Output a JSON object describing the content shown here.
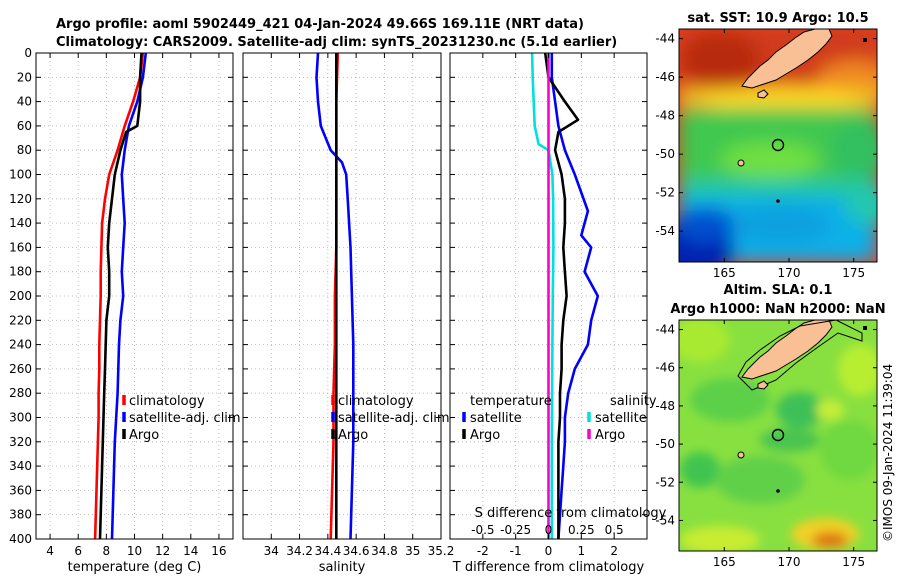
{
  "figure": {
    "title_line1": "Argo profile: aoml 5902449_421 04-Jan-2024 49.66S 169.11E (NRT data)",
    "title_line2": "Climatology: CARS2009. Satellite-adj clim: synTS_20231230.nc (5.1d earlier)",
    "credit": "©IMOS 09-Jan-2024 11:39:04"
  },
  "chart_data": [
    {
      "type": "line",
      "panel": "temperature",
      "xlabel": "temperature (deg C)",
      "xlim": [
        3,
        17
      ],
      "xticks": [
        4,
        6,
        8,
        10,
        12,
        14,
        16
      ],
      "ylim": [
        0,
        400
      ],
      "y_reversed": true,
      "yticks": [
        0,
        20,
        40,
        60,
        80,
        100,
        120,
        140,
        160,
        180,
        200,
        220,
        240,
        260,
        280,
        300,
        320,
        340,
        360,
        380,
        400
      ],
      "grid": true,
      "legend": [
        "climatology",
        "satellite-adj. clim",
        "Argo"
      ],
      "series": [
        {
          "name": "climatology",
          "color": "#ff0000",
          "points": [
            [
              10.6,
              0
            ],
            [
              10.4,
              20
            ],
            [
              9.9,
              40
            ],
            [
              9.3,
              60
            ],
            [
              8.8,
              80
            ],
            [
              8.2,
              100
            ],
            [
              7.9,
              120
            ],
            [
              7.7,
              140
            ],
            [
              7.65,
              160
            ],
            [
              7.6,
              180
            ],
            [
              7.6,
              200
            ],
            [
              7.55,
              220
            ],
            [
              7.5,
              240
            ],
            [
              7.5,
              260
            ],
            [
              7.45,
              280
            ],
            [
              7.45,
              300
            ],
            [
              7.4,
              320
            ],
            [
              7.35,
              340
            ],
            [
              7.3,
              360
            ],
            [
              7.25,
              380
            ],
            [
              7.2,
              400
            ]
          ]
        },
        {
          "name": "satellite-adj. clim",
          "color": "#0000ff",
          "points": [
            [
              10.8,
              0
            ],
            [
              10.6,
              20
            ],
            [
              10.2,
              40
            ],
            [
              9.6,
              60
            ],
            [
              9.3,
              80
            ],
            [
              9.1,
              100
            ],
            [
              9.2,
              120
            ],
            [
              9.3,
              140
            ],
            [
              9.2,
              160
            ],
            [
              9.1,
              180
            ],
            [
              9.2,
              200
            ],
            [
              9.0,
              220
            ],
            [
              8.9,
              240
            ],
            [
              8.85,
              260
            ],
            [
              8.8,
              280
            ],
            [
              8.7,
              300
            ],
            [
              8.6,
              320
            ],
            [
              8.55,
              340
            ],
            [
              8.5,
              360
            ],
            [
              8.45,
              380
            ],
            [
              8.4,
              400
            ]
          ]
        },
        {
          "name": "Argo",
          "color": "#000000",
          "points": [
            [
              10.5,
              0
            ],
            [
              10.4,
              20
            ],
            [
              10.4,
              40
            ],
            [
              10.2,
              60
            ],
            [
              9.4,
              65
            ],
            [
              9.0,
              80
            ],
            [
              8.6,
              100
            ],
            [
              8.4,
              120
            ],
            [
              8.2,
              140
            ],
            [
              8.1,
              160
            ],
            [
              8.2,
              180
            ],
            [
              8.2,
              200
            ],
            [
              8.0,
              220
            ],
            [
              7.95,
              240
            ],
            [
              7.9,
              260
            ],
            [
              7.85,
              280
            ],
            [
              7.8,
              300
            ],
            [
              7.75,
              320
            ],
            [
              7.7,
              340
            ],
            [
              7.65,
              360
            ],
            [
              7.6,
              380
            ],
            [
              7.55,
              400
            ]
          ]
        }
      ]
    },
    {
      "type": "line",
      "panel": "salinity",
      "xlabel": "salinity",
      "xlim": [
        33.8,
        35.2
      ],
      "xticks": [
        34,
        34.2,
        34.4,
        34.6,
        34.8,
        35,
        35.2
      ],
      "xticklabels": [
        "34",
        "34.2",
        "34.4",
        "34.6",
        "34.8",
        "35",
        "35.2"
      ],
      "ylim": [
        0,
        400
      ],
      "y_reversed": true,
      "grid": true,
      "legend": [
        "climatology",
        "satellite-adj. clim",
        "Argo"
      ],
      "series": [
        {
          "name": "climatology",
          "color": "#ff0000",
          "points": [
            [
              34.47,
              0
            ],
            [
              34.46,
              40
            ],
            [
              34.46,
              80
            ],
            [
              34.46,
              120
            ],
            [
              34.46,
              160
            ],
            [
              34.45,
              200
            ],
            [
              34.45,
              240
            ],
            [
              34.44,
              280
            ],
            [
              34.44,
              320
            ],
            [
              34.43,
              360
            ],
            [
              34.42,
              400
            ]
          ]
        },
        {
          "name": "satellite-adj. clim",
          "color": "#0000ff",
          "points": [
            [
              34.33,
              0
            ],
            [
              34.32,
              20
            ],
            [
              34.33,
              40
            ],
            [
              34.35,
              60
            ],
            [
              34.42,
              80
            ],
            [
              34.5,
              90
            ],
            [
              34.53,
              100
            ],
            [
              34.54,
              120
            ],
            [
              34.55,
              140
            ],
            [
              34.56,
              160
            ],
            [
              34.57,
              200
            ],
            [
              34.58,
              240
            ],
            [
              34.58,
              280
            ],
            [
              34.58,
              320
            ],
            [
              34.57,
              360
            ],
            [
              34.56,
              400
            ]
          ]
        },
        {
          "name": "Argo",
          "color": "#000000",
          "points": [
            [
              34.46,
              0
            ],
            [
              34.46,
              400
            ]
          ]
        }
      ]
    },
    {
      "type": "line",
      "panel": "difference",
      "xlabel": "T difference from climatology",
      "xlim": [
        -3,
        3
      ],
      "xticks": [
        -2,
        -1,
        0,
        1,
        2
      ],
      "x2label": "S difference from climatology",
      "x2lim": [
        -0.75,
        0.75
      ],
      "x2ticks": [
        -0.5,
        -0.25,
        0,
        0.25,
        0.5
      ],
      "x2ticklabels": [
        "-0.5",
        "-0.25",
        "0",
        "0.25",
        "0.5"
      ],
      "ylim": [
        0,
        400
      ],
      "y_reversed": true,
      "grid": true,
      "legend_temperature": {
        "title": "temperature",
        "items": [
          "satellite",
          "Argo"
        ]
      },
      "legend_salinity": {
        "title": "salinity",
        "items": [
          "satellite",
          "Argo"
        ]
      },
      "series": [
        {
          "name": "temperature satellite",
          "color": "#0000ff",
          "points": [
            [
              0.1,
              0
            ],
            [
              0.1,
              20
            ],
            [
              0.2,
              40
            ],
            [
              0.3,
              60
            ],
            [
              0.5,
              80
            ],
            [
              0.8,
              100
            ],
            [
              1.2,
              130
            ],
            [
              1.0,
              150
            ],
            [
              1.3,
              160
            ],
            [
              1.1,
              180
            ],
            [
              1.5,
              200
            ],
            [
              1.3,
              220
            ],
            [
              1.2,
              240
            ],
            [
              0.8,
              260
            ],
            [
              0.6,
              280
            ],
            [
              0.5,
              300
            ],
            [
              0.5,
              320
            ],
            [
              0.45,
              340
            ],
            [
              0.4,
              360
            ],
            [
              0.35,
              380
            ],
            [
              0.3,
              400
            ]
          ]
        },
        {
          "name": "temperature Argo",
          "color": "#000000",
          "points": [
            [
              -0.1,
              0
            ],
            [
              0.0,
              20
            ],
            [
              0.5,
              40
            ],
            [
              0.9,
              55
            ],
            [
              0.3,
              65
            ],
            [
              0.2,
              80
            ],
            [
              0.4,
              100
            ],
            [
              0.5,
              120
            ],
            [
              0.5,
              140
            ],
            [
              0.45,
              160
            ],
            [
              0.5,
              180
            ],
            [
              0.55,
              200
            ],
            [
              0.45,
              220
            ],
            [
              0.4,
              240
            ],
            [
              0.4,
              260
            ],
            [
              0.35,
              280
            ],
            [
              0.35,
              300
            ],
            [
              0.3,
              320
            ],
            [
              0.3,
              340
            ],
            [
              0.3,
              360
            ],
            [
              0.3,
              380
            ],
            [
              0.3,
              400
            ]
          ]
        },
        {
          "name": "salinity satellite",
          "color": "#00e0e0",
          "points": [
            [
              -0.5,
              0
            ],
            [
              -0.48,
              20
            ],
            [
              -0.45,
              40
            ],
            [
              -0.42,
              60
            ],
            [
              -0.3,
              75
            ],
            [
              0.0,
              80
            ],
            [
              0.12,
              100
            ],
            [
              0.14,
              120
            ],
            [
              0.15,
              160
            ],
            [
              0.13,
              200
            ],
            [
              0.12,
              240
            ],
            [
              0.11,
              280
            ],
            [
              0.1,
              320
            ],
            [
              0.1,
              360
            ],
            [
              0.1,
              400
            ]
          ]
        },
        {
          "name": "salinity Argo",
          "color": "#ff00cc",
          "points": [
            [
              0.0,
              0
            ],
            [
              0.0,
              400
            ]
          ]
        }
      ]
    },
    {
      "type": "heatmap",
      "panel": "sst_map",
      "title": "sat. SST: 10.9 Argo: 10.5",
      "xticks": [
        165,
        170,
        175
      ],
      "yticks": [
        -44,
        -46,
        -48,
        -50,
        -52,
        -54
      ],
      "xlim": [
        161.5,
        176.8
      ],
      "ylim": [
        -55.6,
        -43.5
      ],
      "argo_position": [
        169.11,
        -49.66
      ]
    },
    {
      "type": "heatmap",
      "panel": "sla_map",
      "title_line1": "Altim. SLA: 0.1",
      "title_line2": "Argo h1000: NaN h2000: NaN",
      "xticks": [
        165,
        170,
        175
      ],
      "yticks": [
        -44,
        -46,
        -48,
        -50,
        -52,
        -54
      ],
      "xlim": [
        161.5,
        176.8
      ],
      "ylim": [
        -55.6,
        -43.5
      ],
      "argo_position": [
        169.11,
        -49.66
      ]
    }
  ]
}
